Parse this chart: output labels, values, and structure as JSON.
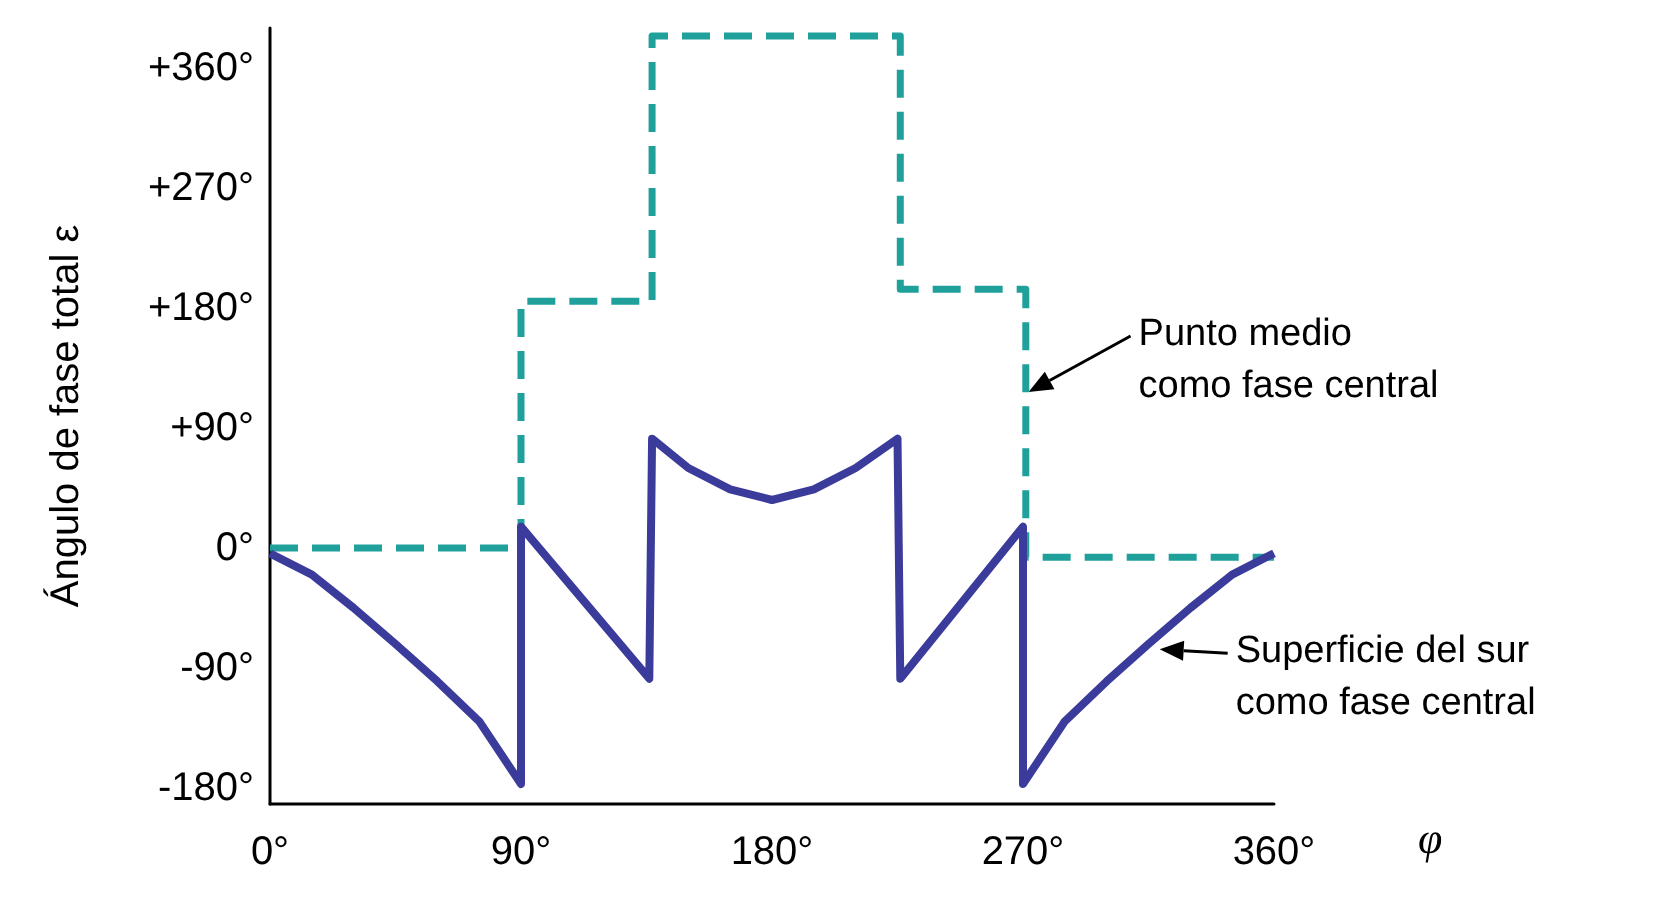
{
  "chart_data": {
    "type": "line",
    "xlabel": "φ",
    "ylabel": "Ángulo de fase total ε",
    "xlim": [
      0,
      360
    ],
    "ylim": [
      -192,
      390
    ],
    "xticks": [
      {
        "value": 0,
        "label": "0°"
      },
      {
        "value": 90,
        "label": "90°"
      },
      {
        "value": 180,
        "label": "180°"
      },
      {
        "value": 270,
        "label": "270°"
      },
      {
        "value": 360,
        "label": "360°"
      }
    ],
    "yticks": [
      {
        "value": -180,
        "label": "-180°"
      },
      {
        "value": -90,
        "label": "-90°"
      },
      {
        "value": 0,
        "label": "0°"
      },
      {
        "value": 90,
        "label": "+90°"
      },
      {
        "value": 180,
        "label": "+180°"
      },
      {
        "value": 270,
        "label": "+270°"
      },
      {
        "value": 360,
        "label": "+360°"
      }
    ],
    "grid": false,
    "marker": "none",
    "series": [
      {
        "color": "#1fa09b",
        "line_style": "dashed",
        "x": [
          0,
          90,
          90,
          137,
          137,
          226,
          226,
          271,
          271,
          360
        ],
        "values": [
          0,
          0,
          185,
          185,
          384,
          384,
          194,
          194,
          -7,
          -7
        ]
      },
      {
        "color": "#3b3b9c",
        "line_style": "solid",
        "x": [
          0,
          15,
          30,
          45,
          60,
          75,
          90,
          90,
          136,
          137,
          150,
          165,
          180,
          195,
          210,
          225,
          226,
          270,
          270,
          285,
          300,
          315,
          330,
          345,
          360
        ],
        "values": [
          -4,
          -20,
          -45,
          -72,
          -100,
          -130,
          -177,
          16,
          -98,
          82,
          60,
          44,
          36,
          44,
          60,
          82,
          -98,
          16,
          -177,
          -130,
          -100,
          -72,
          -45,
          -20,
          -4
        ]
      }
    ],
    "annotations": [
      {
        "text": "Punto medio\ncomo fase central",
        "x": 272,
        "y": 117
      },
      {
        "text": "Superficie del sur\ncomo fase central",
        "x": 319,
        "y": -76
      }
    ]
  }
}
